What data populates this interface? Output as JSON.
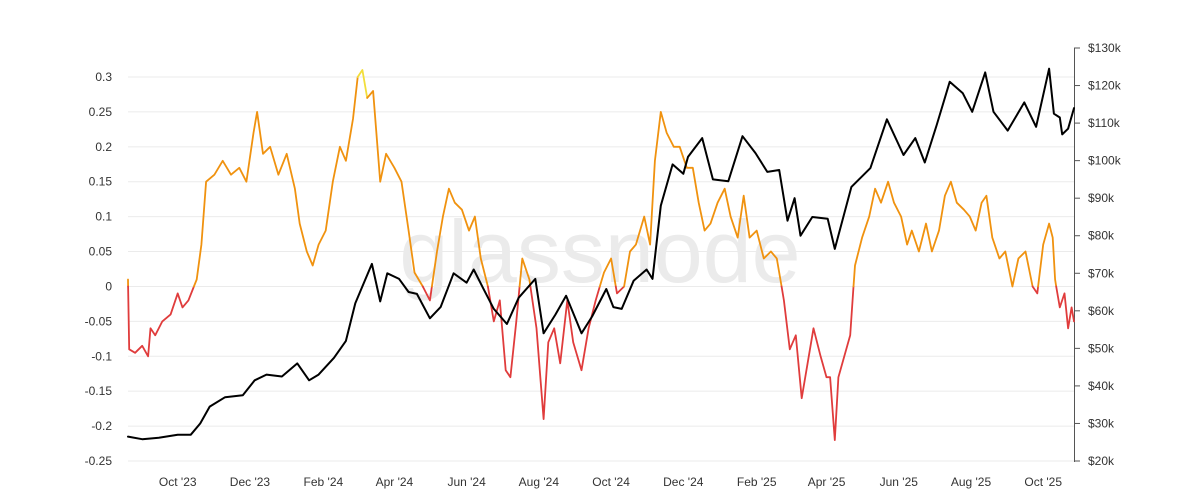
{
  "watermark": "glassnode",
  "colors": {
    "price": "#000000",
    "positive": "#f0920f",
    "negative": "#e03c3c",
    "extreme": "#f2de3a",
    "grid": "#ebebeb",
    "axis": "#555555"
  },
  "chart_data": {
    "type": "line",
    "title": "",
    "xlabel": "",
    "ylabel_left": "",
    "ylabel_right": "",
    "x_ticks": [
      "Oct '23",
      "Dec '23",
      "Feb '24",
      "Apr '24",
      "Jun '24",
      "Aug '24",
      "Oct '24",
      "Dec '24",
      "Feb '25",
      "Apr '25",
      "Jun '25",
      "Aug '25",
      "Oct '25"
    ],
    "x_range": [
      "2023-08-20",
      "2025-10-27"
    ],
    "y_left_ticks": [
      "0.3",
      "0.25",
      "0.2",
      "0.15",
      "0.1",
      "0.05",
      "0",
      "-0.05",
      "-0.1",
      "-0.15",
      "-0.2",
      "-0.25"
    ],
    "y_left_range": [
      -0.25,
      0.3
    ],
    "y_right_ticks": [
      "$130k",
      "$120k",
      "$110k",
      "$100k",
      "$90k",
      "$80k",
      "$70k",
      "$60k",
      "$50k",
      "$40k",
      "$30k",
      "$20k"
    ],
    "y_right_range": [
      20000,
      130000
    ],
    "grid": "horizontal",
    "series": [
      {
        "axis": "left",
        "color_rule": "orange when >= 0, red when < 0, yellow when > 0.28",
        "points": [
          [
            "2023-08-20",
            0.01
          ],
          [
            "2023-08-21",
            -0.09
          ],
          [
            "2023-08-26",
            -0.095
          ],
          [
            "2023-09-01",
            -0.085
          ],
          [
            "2023-09-06",
            -0.1
          ],
          [
            "2023-09-08",
            -0.06
          ],
          [
            "2023-09-12",
            -0.07
          ],
          [
            "2023-09-18",
            -0.05
          ],
          [
            "2023-09-25",
            -0.04
          ],
          [
            "2023-10-01",
            -0.01
          ],
          [
            "2023-10-05",
            -0.03
          ],
          [
            "2023-10-10",
            -0.02
          ],
          [
            "2023-10-17",
            0.01
          ],
          [
            "2023-10-21",
            0.06
          ],
          [
            "2023-10-25",
            0.15
          ],
          [
            "2023-11-01",
            0.16
          ],
          [
            "2023-11-08",
            0.18
          ],
          [
            "2023-11-15",
            0.16
          ],
          [
            "2023-11-22",
            0.17
          ],
          [
            "2023-11-28",
            0.15
          ],
          [
            "2023-12-04",
            0.22
          ],
          [
            "2023-12-07",
            0.25
          ],
          [
            "2023-12-12",
            0.19
          ],
          [
            "2023-12-18",
            0.2
          ],
          [
            "2023-12-25",
            0.16
          ],
          [
            "2024-01-01",
            0.19
          ],
          [
            "2024-01-08",
            0.14
          ],
          [
            "2024-01-12",
            0.09
          ],
          [
            "2024-01-18",
            0.05
          ],
          [
            "2024-01-23",
            0.03
          ],
          [
            "2024-01-28",
            0.06
          ],
          [
            "2024-02-03",
            0.08
          ],
          [
            "2024-02-09",
            0.15
          ],
          [
            "2024-02-15",
            0.2
          ],
          [
            "2024-02-20",
            0.18
          ],
          [
            "2024-02-26",
            0.24
          ],
          [
            "2024-03-01",
            0.3
          ],
          [
            "2024-03-05",
            0.31
          ],
          [
            "2024-03-09",
            0.27
          ],
          [
            "2024-03-14",
            0.28
          ],
          [
            "2024-03-20",
            0.15
          ],
          [
            "2024-03-25",
            0.19
          ],
          [
            "2024-04-01",
            0.17
          ],
          [
            "2024-04-07",
            0.15
          ],
          [
            "2024-04-13",
            0.08
          ],
          [
            "2024-04-18",
            0.02
          ],
          [
            "2024-04-25",
            0.0
          ],
          [
            "2024-05-01",
            -0.02
          ],
          [
            "2024-05-07",
            0.05
          ],
          [
            "2024-05-12",
            0.1
          ],
          [
            "2024-05-17",
            0.14
          ],
          [
            "2024-05-22",
            0.12
          ],
          [
            "2024-05-28",
            0.11
          ],
          [
            "2024-06-03",
            0.08
          ],
          [
            "2024-06-08",
            0.1
          ],
          [
            "2024-06-13",
            0.04
          ],
          [
            "2024-06-19",
            0.0
          ],
          [
            "2024-06-24",
            -0.05
          ],
          [
            "2024-06-29",
            -0.02
          ],
          [
            "2024-07-04",
            -0.12
          ],
          [
            "2024-07-08",
            -0.13
          ],
          [
            "2024-07-13",
            -0.05
          ],
          [
            "2024-07-18",
            0.04
          ],
          [
            "2024-07-24",
            0.01
          ],
          [
            "2024-07-30",
            -0.06
          ],
          [
            "2024-08-05",
            -0.19
          ],
          [
            "2024-08-09",
            -0.08
          ],
          [
            "2024-08-14",
            -0.06
          ],
          [
            "2024-08-19",
            -0.11
          ],
          [
            "2024-08-25",
            -0.02
          ],
          [
            "2024-08-30",
            -0.08
          ],
          [
            "2024-09-06",
            -0.12
          ],
          [
            "2024-09-12",
            -0.06
          ],
          [
            "2024-09-18",
            -0.02
          ],
          [
            "2024-09-25",
            0.02
          ],
          [
            "2024-10-01",
            0.04
          ],
          [
            "2024-10-06",
            -0.01
          ],
          [
            "2024-10-12",
            0.0
          ],
          [
            "2024-10-17",
            0.05
          ],
          [
            "2024-10-22",
            0.06
          ],
          [
            "2024-10-29",
            0.1
          ],
          [
            "2024-11-03",
            0.06
          ],
          [
            "2024-11-07",
            0.18
          ],
          [
            "2024-11-12",
            0.25
          ],
          [
            "2024-11-17",
            0.22
          ],
          [
            "2024-11-23",
            0.2
          ],
          [
            "2024-11-28",
            0.2
          ],
          [
            "2024-12-04",
            0.17
          ],
          [
            "2024-12-09",
            0.17
          ],
          [
            "2024-12-14",
            0.12
          ],
          [
            "2024-12-19",
            0.08
          ],
          [
            "2024-12-24",
            0.09
          ],
          [
            "2024-12-30",
            0.12
          ],
          [
            "2025-01-05",
            0.14
          ],
          [
            "2025-01-10",
            0.1
          ],
          [
            "2025-01-16",
            0.07
          ],
          [
            "2025-01-21",
            0.13
          ],
          [
            "2025-01-26",
            0.07
          ],
          [
            "2025-02-01",
            0.08
          ],
          [
            "2025-02-07",
            0.04
          ],
          [
            "2025-02-13",
            0.05
          ],
          [
            "2025-02-18",
            0.04
          ],
          [
            "2025-02-24",
            -0.02
          ],
          [
            "2025-03-01",
            -0.09
          ],
          [
            "2025-03-06",
            -0.07
          ],
          [
            "2025-03-11",
            -0.16
          ],
          [
            "2025-03-16",
            -0.11
          ],
          [
            "2025-03-21",
            -0.06
          ],
          [
            "2025-03-27",
            -0.1
          ],
          [
            "2025-04-01",
            -0.13
          ],
          [
            "2025-04-04",
            -0.13
          ],
          [
            "2025-04-08",
            -0.22
          ],
          [
            "2025-04-11",
            -0.13
          ],
          [
            "2025-04-16",
            -0.1
          ],
          [
            "2025-04-21",
            -0.07
          ],
          [
            "2025-04-25",
            0.03
          ],
          [
            "2025-05-01",
            0.07
          ],
          [
            "2025-05-07",
            0.1
          ],
          [
            "2025-05-12",
            0.14
          ],
          [
            "2025-05-17",
            0.12
          ],
          [
            "2025-05-23",
            0.15
          ],
          [
            "2025-05-28",
            0.12
          ],
          [
            "2025-06-03",
            0.1
          ],
          [
            "2025-06-08",
            0.06
          ],
          [
            "2025-06-12",
            0.08
          ],
          [
            "2025-06-18",
            0.05
          ],
          [
            "2025-06-24",
            0.09
          ],
          [
            "2025-06-29",
            0.05
          ],
          [
            "2025-07-05",
            0.08
          ],
          [
            "2025-07-10",
            0.13
          ],
          [
            "2025-07-15",
            0.15
          ],
          [
            "2025-07-20",
            0.12
          ],
          [
            "2025-07-26",
            0.11
          ],
          [
            "2025-07-31",
            0.1
          ],
          [
            "2025-08-05",
            0.08
          ],
          [
            "2025-08-10",
            0.12
          ],
          [
            "2025-08-14",
            0.13
          ],
          [
            "2025-08-19",
            0.07
          ],
          [
            "2025-08-25",
            0.04
          ],
          [
            "2025-08-30",
            0.05
          ],
          [
            "2025-09-05",
            0.0
          ],
          [
            "2025-09-10",
            0.04
          ],
          [
            "2025-09-16",
            0.05
          ],
          [
            "2025-09-22",
            0.0
          ],
          [
            "2025-09-26",
            -0.01
          ],
          [
            "2025-10-01",
            0.06
          ],
          [
            "2025-10-06",
            0.09
          ],
          [
            "2025-10-09",
            0.07
          ],
          [
            "2025-10-11",
            0.01
          ],
          [
            "2025-10-15",
            -0.03
          ],
          [
            "2025-10-19",
            -0.01
          ],
          [
            "2025-10-22",
            -0.06
          ],
          [
            "2025-10-25",
            -0.03
          ],
          [
            "2025-10-27",
            -0.05
          ]
        ]
      },
      {
        "axis": "right",
        "color": "#000000",
        "points": [
          [
            "2023-08-20",
            26500
          ],
          [
            "2023-09-01",
            25800
          ],
          [
            "2023-09-15",
            26200
          ],
          [
            "2023-10-01",
            27000
          ],
          [
            "2023-10-12",
            27000
          ],
          [
            "2023-10-20",
            30000
          ],
          [
            "2023-10-28",
            34500
          ],
          [
            "2023-11-10",
            37000
          ],
          [
            "2023-11-25",
            37500
          ],
          [
            "2023-12-05",
            41500
          ],
          [
            "2023-12-15",
            43000
          ],
          [
            "2023-12-28",
            42500
          ],
          [
            "2024-01-10",
            46000
          ],
          [
            "2024-01-20",
            41500
          ],
          [
            "2024-01-28",
            43000
          ],
          [
            "2024-02-10",
            47500
          ],
          [
            "2024-02-20",
            52000
          ],
          [
            "2024-02-28",
            62000
          ],
          [
            "2024-03-05",
            66500
          ],
          [
            "2024-03-13",
            72500
          ],
          [
            "2024-03-20",
            62500
          ],
          [
            "2024-03-26",
            70000
          ],
          [
            "2024-04-05",
            68500
          ],
          [
            "2024-04-13",
            65000
          ],
          [
            "2024-04-20",
            64500
          ],
          [
            "2024-05-01",
            58000
          ],
          [
            "2024-05-10",
            61000
          ],
          [
            "2024-05-21",
            70000
          ],
          [
            "2024-06-01",
            67500
          ],
          [
            "2024-06-07",
            71000
          ],
          [
            "2024-06-15",
            66000
          ],
          [
            "2024-06-24",
            60500
          ],
          [
            "2024-07-05",
            56500
          ],
          [
            "2024-07-15",
            63500
          ],
          [
            "2024-07-29",
            68500
          ],
          [
            "2024-08-05",
            54000
          ],
          [
            "2024-08-15",
            59000
          ],
          [
            "2024-08-24",
            64000
          ],
          [
            "2024-09-06",
            54000
          ],
          [
            "2024-09-15",
            58500
          ],
          [
            "2024-09-27",
            65800
          ],
          [
            "2024-10-03",
            61000
          ],
          [
            "2024-10-10",
            60500
          ],
          [
            "2024-10-20",
            68000
          ],
          [
            "2024-10-31",
            71000
          ],
          [
            "2024-11-05",
            68500
          ],
          [
            "2024-11-12",
            88000
          ],
          [
            "2024-11-22",
            99000
          ],
          [
            "2024-12-01",
            96500
          ],
          [
            "2024-12-05",
            101000
          ],
          [
            "2024-12-17",
            106000
          ],
          [
            "2024-12-26",
            95000
          ],
          [
            "2025-01-08",
            94500
          ],
          [
            "2025-01-20",
            106500
          ],
          [
            "2025-01-31",
            102000
          ],
          [
            "2025-02-10",
            97000
          ],
          [
            "2025-02-20",
            97500
          ],
          [
            "2025-02-27",
            84000
          ],
          [
            "2025-03-05",
            90000
          ],
          [
            "2025-03-10",
            80000
          ],
          [
            "2025-03-20",
            85000
          ],
          [
            "2025-04-02",
            84500
          ],
          [
            "2025-04-08",
            76500
          ],
          [
            "2025-04-22",
            93000
          ],
          [
            "2025-05-08",
            98000
          ],
          [
            "2025-05-22",
            111000
          ],
          [
            "2025-06-05",
            101500
          ],
          [
            "2025-06-15",
            106000
          ],
          [
            "2025-06-23",
            99500
          ],
          [
            "2025-07-03",
            109500
          ],
          [
            "2025-07-14",
            121000
          ],
          [
            "2025-07-25",
            118000
          ],
          [
            "2025-08-02",
            113000
          ],
          [
            "2025-08-13",
            123500
          ],
          [
            "2025-08-20",
            113000
          ],
          [
            "2025-09-01",
            108000
          ],
          [
            "2025-09-15",
            115500
          ],
          [
            "2025-09-25",
            109000
          ],
          [
            "2025-10-06",
            124500
          ],
          [
            "2025-10-10",
            112500
          ],
          [
            "2025-10-15",
            111500
          ],
          [
            "2025-10-17",
            107000
          ],
          [
            "2025-10-22",
            108500
          ],
          [
            "2025-10-27",
            114000
          ]
        ]
      }
    ]
  }
}
